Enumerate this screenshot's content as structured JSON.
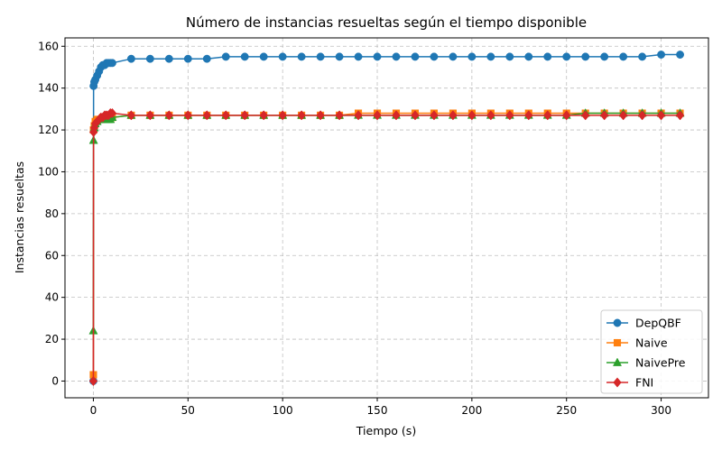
{
  "chart_data": {
    "type": "line",
    "title": "Número de instancias resueltas según el tiempo disponible",
    "xlabel": "Tiempo (s)",
    "ylabel": "Instancias resueltas",
    "xlim": [
      -15,
      325
    ],
    "ylim": [
      -8,
      164
    ],
    "xticks": [
      0,
      50,
      100,
      150,
      200,
      250,
      300
    ],
    "yticks": [
      0,
      20,
      40,
      60,
      80,
      100,
      120,
      140,
      160
    ],
    "grid": true,
    "legend_position": "lower-right",
    "series": [
      {
        "name": "DepQBF",
        "color": "#1f77b4",
        "marker": "circle",
        "x": [
          0,
          0.1,
          0.5,
          1,
          2,
          3,
          4,
          5,
          6,
          7,
          8,
          9,
          10,
          20,
          30,
          40,
          50,
          60,
          70,
          80,
          90,
          100,
          110,
          120,
          130,
          140,
          150,
          160,
          170,
          180,
          190,
          200,
          210,
          220,
          230,
          240,
          250,
          260,
          270,
          280,
          290,
          300,
          310
        ],
        "y": [
          0,
          141,
          143,
          144,
          146,
          148,
          150,
          151,
          151,
          152,
          152,
          152,
          152,
          154,
          154,
          154,
          154,
          154,
          155,
          155,
          155,
          155,
          155,
          155,
          155,
          155,
          155,
          155,
          155,
          155,
          155,
          155,
          155,
          155,
          155,
          155,
          155,
          155,
          155,
          155,
          155,
          156,
          156
        ]
      },
      {
        "name": "Naive",
        "color": "#ff7f0e",
        "marker": "square",
        "x": [
          0,
          0.1,
          0.5,
          1,
          2,
          3,
          4,
          5,
          6,
          7,
          8,
          9,
          10,
          20,
          30,
          40,
          50,
          60,
          70,
          80,
          90,
          100,
          110,
          120,
          130,
          140,
          150,
          160,
          170,
          180,
          190,
          200,
          210,
          220,
          230,
          240,
          250,
          260,
          270,
          280,
          290,
          300,
          310
        ],
        "y": [
          3,
          120,
          122,
          124,
          125,
          125,
          125,
          126,
          126,
          126,
          126,
          126,
          126,
          127,
          127,
          127,
          127,
          127,
          127,
          127,
          127,
          127,
          127,
          127,
          127,
          128,
          128,
          128,
          128,
          128,
          128,
          128,
          128,
          128,
          128,
          128,
          128,
          128,
          128,
          128,
          128,
          128,
          128
        ]
      },
      {
        "name": "NaivePre",
        "color": "#2ca02c",
        "marker": "triangle",
        "x": [
          0,
          0.1,
          0.5,
          1,
          2,
          3,
          4,
          5,
          6,
          7,
          8,
          9,
          10,
          20,
          30,
          40,
          50,
          60,
          70,
          80,
          90,
          100,
          110,
          120,
          130,
          140,
          150,
          160,
          170,
          180,
          190,
          200,
          210,
          220,
          230,
          240,
          250,
          260,
          270,
          280,
          290,
          300,
          310
        ],
        "y": [
          24,
          115,
          121,
          123,
          124,
          125,
          125,
          125,
          125,
          125,
          125,
          125,
          126,
          127,
          127,
          127,
          127,
          127,
          127,
          127,
          127,
          127,
          127,
          127,
          127,
          127,
          127,
          127,
          127,
          127,
          127,
          127,
          127,
          127,
          127,
          127,
          127,
          128,
          128,
          128,
          128,
          128,
          128
        ]
      },
      {
        "name": "FNI",
        "color": "#d62728",
        "marker": "diamond",
        "x": [
          0,
          0.1,
          0.5,
          1,
          2,
          3,
          4,
          5,
          6,
          7,
          8,
          9,
          10,
          20,
          30,
          40,
          50,
          60,
          70,
          80,
          90,
          100,
          110,
          120,
          130,
          140,
          150,
          160,
          170,
          180,
          190,
          200,
          210,
          220,
          230,
          240,
          250,
          260,
          270,
          280,
          290,
          300,
          310
        ],
        "y": [
          0,
          119,
          121,
          123,
          124,
          125,
          126,
          126,
          127,
          127,
          127,
          128,
          128,
          127,
          127,
          127,
          127,
          127,
          127,
          127,
          127,
          127,
          127,
          127,
          127,
          127,
          127,
          127,
          127,
          127,
          127,
          127,
          127,
          127,
          127,
          127,
          127,
          127,
          127,
          127,
          127,
          127,
          127
        ]
      }
    ]
  }
}
